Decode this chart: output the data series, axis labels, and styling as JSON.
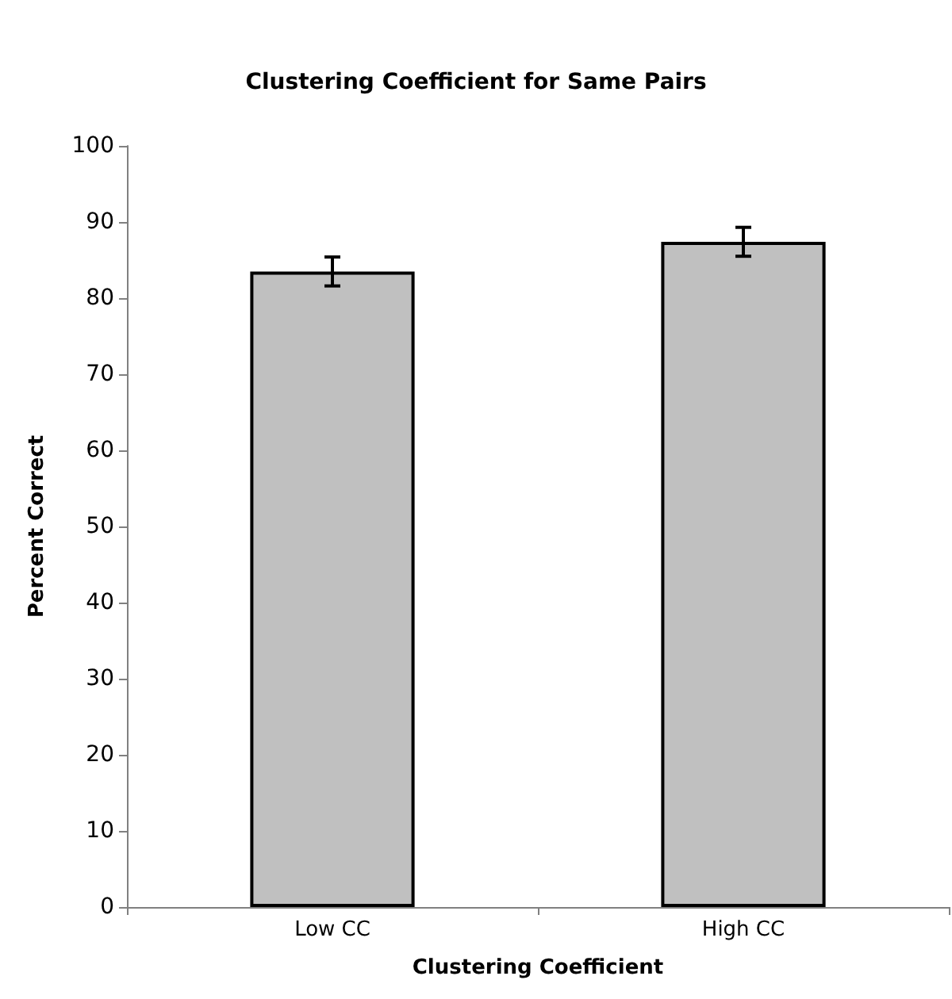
{
  "chart_data": {
    "type": "bar",
    "title": "Clustering Coefficient for Same Pairs",
    "xlabel": "Clustering Coefficient",
    "ylabel": "Percent Correct",
    "categories": [
      "Low CC",
      "High CC"
    ],
    "series": [
      {
        "color": "#c0c0c0",
        "values": [
          83.5,
          87.4
        ],
        "errors": [
          1.9,
          1.9
        ]
      }
    ],
    "ylim": [
      0,
      100
    ],
    "yticks": [
      0,
      10,
      20,
      30,
      40,
      50,
      60,
      70,
      80,
      90,
      100
    ],
    "grid": false
  }
}
